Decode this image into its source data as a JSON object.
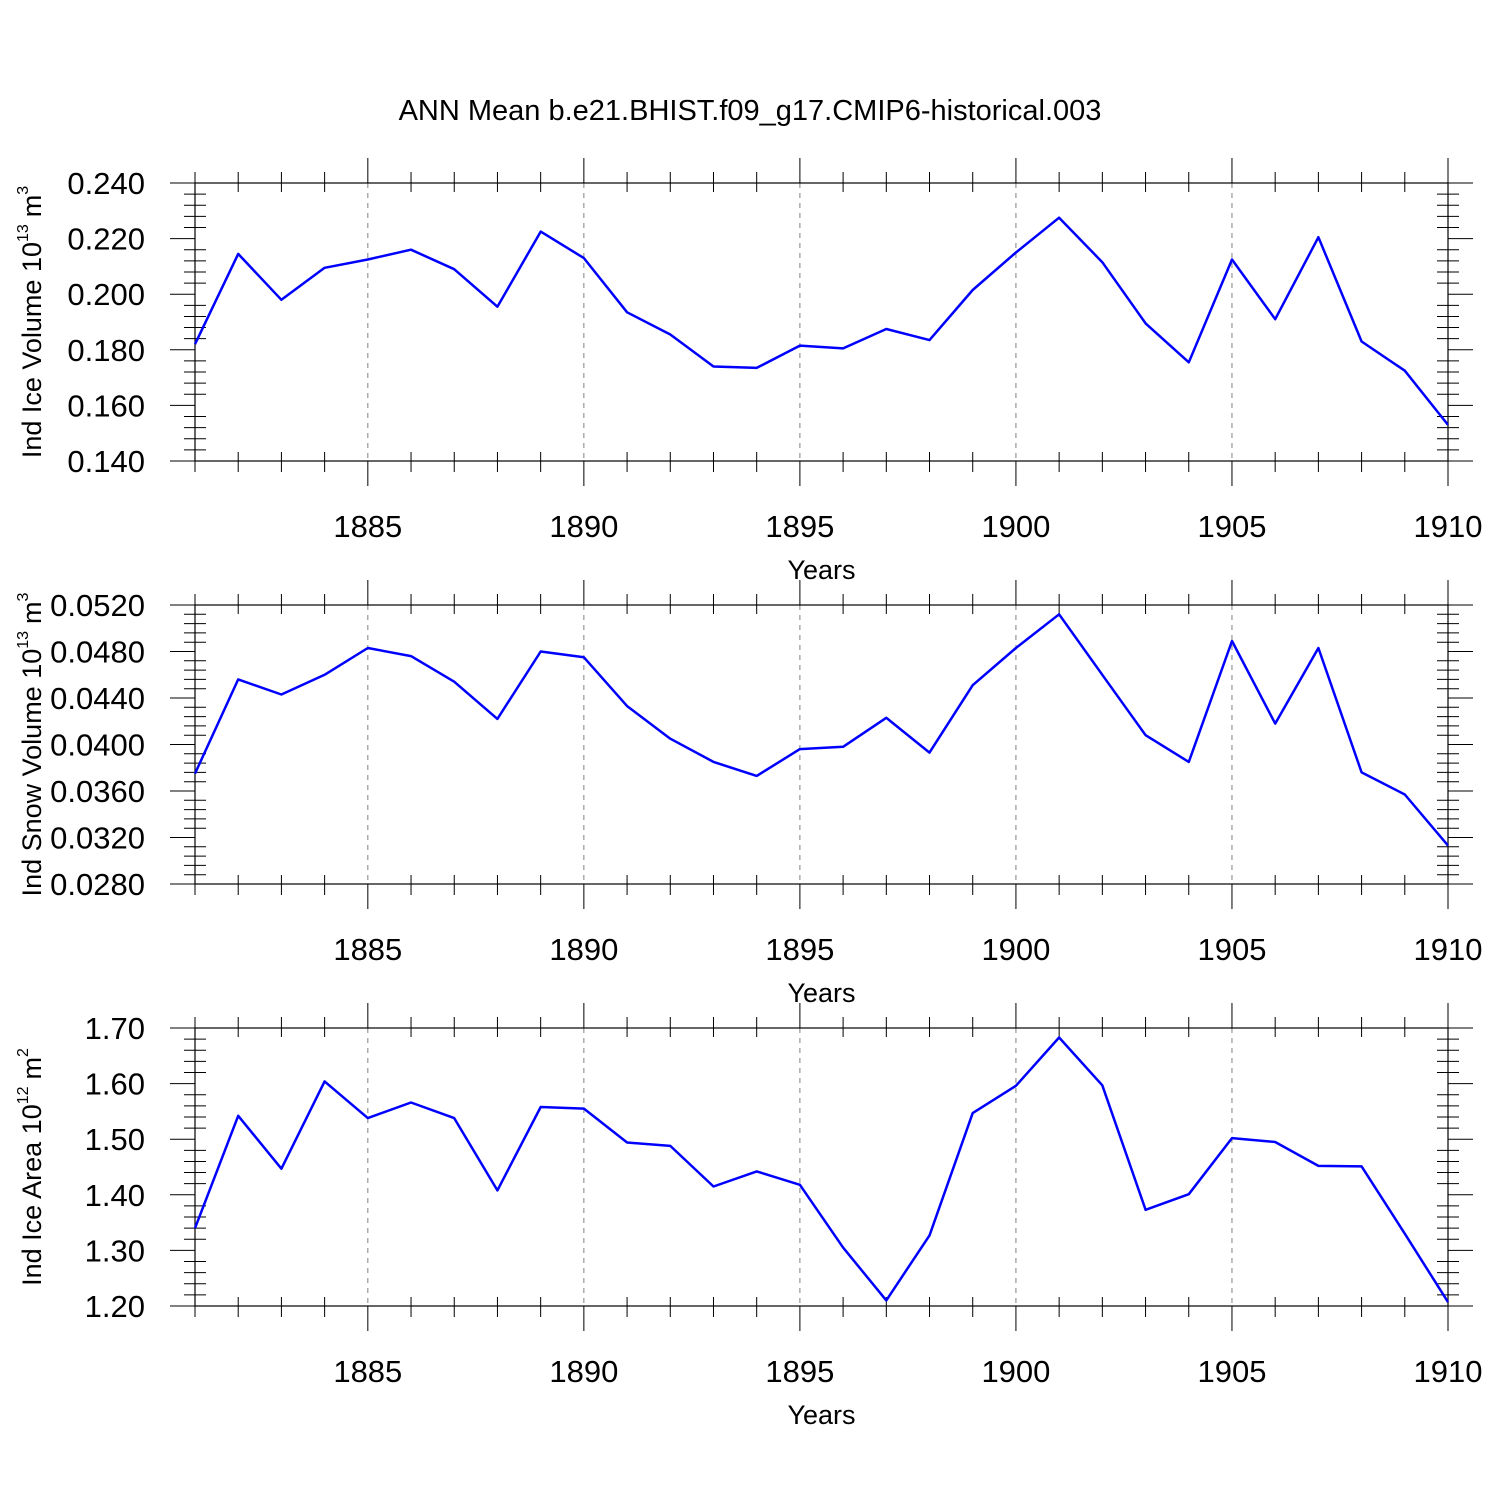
{
  "title": "ANN Mean b.e21.BHIST.f09_g17.CMIP6-historical.003",
  "colors": {
    "line": "#0000ff",
    "axis": "#000000",
    "grid": "#808080"
  },
  "chart_data": [
    {
      "type": "line",
      "title": "ANN Mean b.e21.BHIST.f09_g17.CMIP6-historical.003",
      "xlabel": "Years",
      "ylabel": {
        "text": "Ind Ice Volume 10",
        "exponent": "13",
        "unit": "m",
        "unit_exponent": "3"
      },
      "xlim": [
        1881,
        1910
      ],
      "ylim": [
        0.14,
        0.24
      ],
      "xticks": [
        "1885",
        "1890",
        "1895",
        "1900",
        "1905",
        "1910"
      ],
      "yticks": [
        "0.140",
        "0.160",
        "0.180",
        "0.200",
        "0.220",
        "0.240"
      ],
      "grid": "vertical dashed at major x ticks",
      "series": [
        {
          "name": "Ind Ice Volume",
          "x": [
            1881,
            1882,
            1883,
            1884,
            1885,
            1886,
            1887,
            1888,
            1889,
            1890,
            1891,
            1892,
            1893,
            1894,
            1895,
            1896,
            1897,
            1898,
            1899,
            1900,
            1901,
            1902,
            1903,
            1904,
            1905,
            1906,
            1907,
            1908,
            1909,
            1910
          ],
          "values": [
            0.182,
            0.2145,
            0.198,
            0.2095,
            0.2125,
            0.216,
            0.209,
            0.1955,
            0.2225,
            0.213,
            0.1935,
            0.1855,
            0.174,
            0.1735,
            0.1815,
            0.1805,
            0.1875,
            0.1835,
            0.2015,
            0.215,
            0.2275,
            0.2115,
            0.1895,
            0.1755,
            0.2125,
            0.191,
            0.2205,
            0.183,
            0.1725,
            0.153
          ]
        }
      ]
    },
    {
      "type": "line",
      "xlabel": "Years",
      "ylabel": {
        "text": "Ind Snow Volume 10",
        "exponent": "13",
        "unit": "m",
        "unit_exponent": "3"
      },
      "xlim": [
        1881,
        1910
      ],
      "ylim": [
        0.028,
        0.052
      ],
      "xticks": [
        "1885",
        "1890",
        "1895",
        "1900",
        "1905",
        "1910"
      ],
      "yticks": [
        "0.0280",
        "0.0320",
        "0.0360",
        "0.0400",
        "0.0440",
        "0.0480",
        "0.0520"
      ],
      "grid": "vertical dashed at major x ticks",
      "series": [
        {
          "name": "Ind Snow Volume",
          "x": [
            1881,
            1882,
            1883,
            1884,
            1885,
            1886,
            1887,
            1888,
            1889,
            1890,
            1891,
            1892,
            1893,
            1894,
            1895,
            1896,
            1897,
            1898,
            1899,
            1900,
            1901,
            1902,
            1903,
            1904,
            1905,
            1906,
            1907,
            1908,
            1909,
            1910
          ],
          "values": [
            0.0375,
            0.0456,
            0.0443,
            0.046,
            0.0483,
            0.0476,
            0.0454,
            0.0422,
            0.048,
            0.0475,
            0.0433,
            0.0405,
            0.0385,
            0.0373,
            0.0396,
            0.0398,
            0.0423,
            0.0393,
            0.0451,
            0.0483,
            0.0512,
            0.046,
            0.0408,
            0.0385,
            0.0489,
            0.0418,
            0.0483,
            0.0376,
            0.0357,
            0.0313
          ]
        }
      ]
    },
    {
      "type": "line",
      "xlabel": "Years",
      "ylabel": {
        "text": "Ind Ice Area 10",
        "exponent": "12",
        "unit": "m",
        "unit_exponent": "2"
      },
      "xlim": [
        1881,
        1910
      ],
      "ylim": [
        1.2,
        1.7
      ],
      "xticks": [
        "1885",
        "1890",
        "1895",
        "1900",
        "1905",
        "1910"
      ],
      "yticks": [
        "1.20",
        "1.30",
        "1.40",
        "1.50",
        "1.60",
        "1.70"
      ],
      "grid": "vertical dashed at major x ticks",
      "series": [
        {
          "name": "Ind Ice Area",
          "x": [
            1881,
            1882,
            1883,
            1884,
            1885,
            1886,
            1887,
            1888,
            1889,
            1890,
            1891,
            1892,
            1893,
            1894,
            1895,
            1896,
            1897,
            1898,
            1899,
            1900,
            1901,
            1902,
            1903,
            1904,
            1905,
            1906,
            1907,
            1908,
            1909,
            1910
          ],
          "values": [
            1.34,
            1.542,
            1.447,
            1.604,
            1.538,
            1.566,
            1.538,
            1.408,
            1.558,
            1.555,
            1.494,
            1.488,
            1.415,
            1.442,
            1.418,
            1.305,
            1.21,
            1.327,
            1.547,
            1.596,
            1.683,
            1.597,
            1.373,
            1.401,
            1.502,
            1.495,
            1.452,
            1.451,
            1.33,
            1.207
          ]
        }
      ]
    }
  ]
}
